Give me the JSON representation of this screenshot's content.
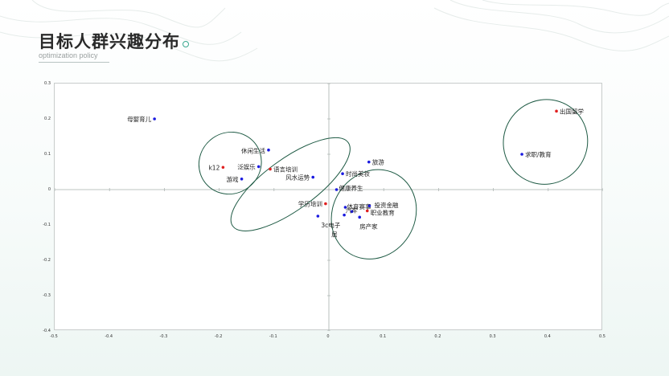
{
  "header": {
    "title": "目标人群兴趣分布",
    "subtitle": "optimization policy"
  },
  "colors": {
    "accent": "#3aa890",
    "ellipse": "#1e5a44",
    "point_blue": "#1a1ae0",
    "point_red": "#e02020",
    "axis": "#a8b0ae"
  },
  "chart_data": {
    "type": "scatter",
    "xlim": [
      -0.5,
      0.5
    ],
    "ylim": [
      -0.4,
      0.3
    ],
    "x_ticks": [
      "-0.5",
      "-0.4",
      "-0.3",
      "-0.2",
      "-0.1",
      "0",
      "0.1",
      "0.2",
      "0.3",
      "0.4",
      "0.5"
    ],
    "y_ticks": [
      "0.3",
      "0.2",
      "0.1",
      "0",
      "-0.1",
      "-0.2",
      "-0.3",
      "-0.4"
    ],
    "grid": false,
    "points": [
      {
        "label": "母婴育儿",
        "x": -0.318,
        "y": 0.2,
        "color": "blue"
      },
      {
        "label": "出国留学",
        "x": 0.415,
        "y": 0.222,
        "color": "red"
      },
      {
        "label": "求职/教育",
        "x": 0.352,
        "y": 0.1,
        "color": "blue"
      },
      {
        "label": "休闲生活",
        "x": -0.11,
        "y": 0.112,
        "color": "blue"
      },
      {
        "label": "泛娱乐",
        "x": -0.128,
        "y": 0.065,
        "color": "blue"
      },
      {
        "label": "k12",
        "x": -0.193,
        "y": 0.063,
        "color": "red"
      },
      {
        "label": "游戏",
        "x": -0.159,
        "y": 0.03,
        "color": "blue"
      },
      {
        "label": "语言培训",
        "x": -0.107,
        "y": 0.058,
        "color": "red"
      },
      {
        "label": "风水运势",
        "x": -0.029,
        "y": 0.035,
        "color": "blue"
      },
      {
        "label": "旅游",
        "x": 0.073,
        "y": 0.078,
        "color": "blue"
      },
      {
        "label": "时尚美妆",
        "x": 0.025,
        "y": 0.045,
        "color": "blue"
      },
      {
        "label": "健康养生",
        "x": 0.014,
        "y": 0.0,
        "color": "blue"
      },
      {
        "label": "学历培训",
        "x": -0.006,
        "y": -0.04,
        "color": "red"
      },
      {
        "label": "体育赛事",
        "x": 0.03,
        "y": -0.05,
        "color": "blue"
      },
      {
        "label": "投资金融",
        "x": 0.074,
        "y": -0.046,
        "color": "blue"
      },
      {
        "label": "汽车",
        "x": 0.042,
        "y": -0.062,
        "color": "blue"
      },
      {
        "label": "职业教育",
        "x": 0.07,
        "y": -0.06,
        "color": "red"
      },
      {
        "label": "3c电子",
        "x": -0.02,
        "y": -0.075,
        "color": "blue"
      },
      {
        "label": "居",
        "x": 0.028,
        "y": -0.072,
        "color": "blue"
      },
      {
        "label": "房产家",
        "x": 0.056,
        "y": -0.078,
        "color": "blue"
      }
    ],
    "clusters": [
      {
        "cx": -0.18,
        "cy": 0.075,
        "rx": 0.058,
        "ry": 0.086,
        "rotation": 40
      },
      {
        "cx": -0.07,
        "cy": 0.015,
        "rx": 0.13,
        "ry": 0.072,
        "rotation": 36
      },
      {
        "cx": 0.082,
        "cy": -0.07,
        "rx": 0.084,
        "ry": 0.116,
        "rotation": 58
      },
      {
        "cx": 0.395,
        "cy": 0.135,
        "rx": 0.078,
        "ry": 0.118,
        "rotation": 52
      }
    ]
  }
}
